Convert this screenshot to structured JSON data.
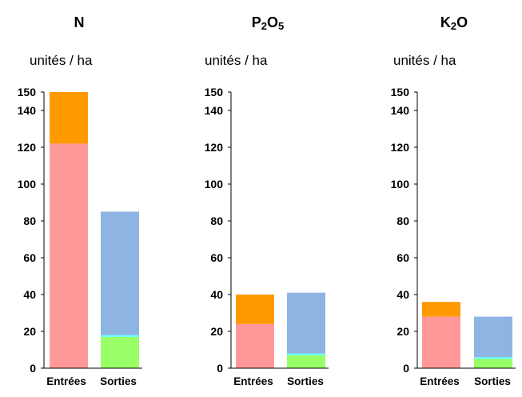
{
  "chart_data": [
    {
      "type": "bar",
      "stacked": true,
      "title": "N",
      "ylabel": "unités / ha",
      "categories": [
        "Entrées",
        "Sorties"
      ],
      "ylim": [
        0,
        150
      ],
      "yticks": [
        0,
        20,
        40,
        60,
        80,
        100,
        120,
        140,
        150
      ],
      "grid": false,
      "series": [
        {
          "color": "#ff9999",
          "values": [
            122,
            0
          ]
        },
        {
          "color": "#ff9900",
          "values": [
            28,
            0
          ]
        },
        {
          "color": "#99ff66",
          "values": [
            0,
            17
          ]
        },
        {
          "color": "#66ffff",
          "values": [
            0,
            1
          ]
        },
        {
          "color": "#8eb4e3",
          "values": [
            0,
            67
          ]
        }
      ]
    },
    {
      "type": "bar",
      "stacked": true,
      "title": "P2O5",
      "title_base": "P",
      "title_sub1": "2",
      "title_mid": "O",
      "title_sub2": "5",
      "ylabel": "unités / ha",
      "categories": [
        "Entrées",
        "Sorties"
      ],
      "ylim": [
        0,
        150
      ],
      "yticks": [
        0,
        20,
        40,
        60,
        80,
        100,
        120,
        140,
        150
      ],
      "grid": false,
      "series": [
        {
          "color": "#ff9999",
          "values": [
            24,
            0
          ]
        },
        {
          "color": "#ff9900",
          "values": [
            16,
            0
          ]
        },
        {
          "color": "#99ff66",
          "values": [
            0,
            7
          ]
        },
        {
          "color": "#66ffff",
          "values": [
            0,
            1
          ]
        },
        {
          "color": "#8eb4e3",
          "values": [
            0,
            33
          ]
        }
      ]
    },
    {
      "type": "bar",
      "stacked": true,
      "title": "K2O",
      "title_base": "K",
      "title_sub1": "2",
      "title_mid": "O",
      "title_sub2": "",
      "ylabel": "unités / ha",
      "categories": [
        "Entrées",
        "Sorties"
      ],
      "ylim": [
        0,
        150
      ],
      "yticks": [
        0,
        20,
        40,
        60,
        80,
        100,
        120,
        140,
        150
      ],
      "grid": false,
      "series": [
        {
          "color": "#ff9999",
          "values": [
            28,
            0
          ]
        },
        {
          "color": "#ff9900",
          "values": [
            8,
            0
          ]
        },
        {
          "color": "#99ff66",
          "values": [
            0,
            5
          ]
        },
        {
          "color": "#66ffff",
          "values": [
            0,
            1
          ]
        },
        {
          "color": "#8eb4e3",
          "values": [
            0,
            22
          ]
        }
      ]
    }
  ]
}
